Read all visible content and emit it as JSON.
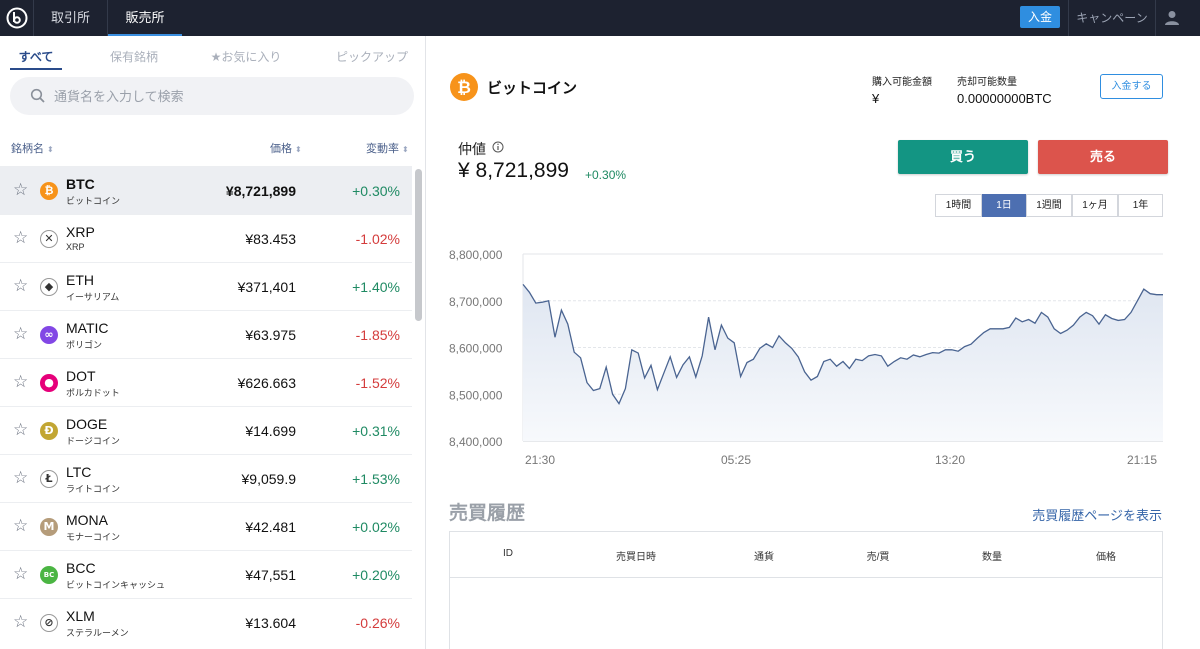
{
  "nav": {
    "tabs": [
      {
        "label": "取引所"
      },
      {
        "label": "販売所"
      }
    ],
    "deposit_label": "入金",
    "campaign_label": "キャンペーン"
  },
  "sidebar": {
    "filters": [
      {
        "label": "すべて"
      },
      {
        "label": "保有銘柄"
      },
      {
        "label": "★お気に入り"
      },
      {
        "label": "ピックアップ"
      }
    ],
    "search_placeholder": "通貨名を入力して検索",
    "columns": {
      "name": "銘柄名",
      "price": "価格",
      "change": "変動率",
      "sort_glyph": "⬍"
    },
    "coins": [
      {
        "symbol": "BTC",
        "name_jp": "ビットコイン",
        "price": "¥8,721,899",
        "change": "+0.30%",
        "dir": "up",
        "color": "#f7931a",
        "glyph": "₿"
      },
      {
        "symbol": "XRP",
        "name_jp": "XRP",
        "price": "¥83.453",
        "change": "-1.02%",
        "dir": "down",
        "color": "#ffffff",
        "glyph": "✕"
      },
      {
        "symbol": "ETH",
        "name_jp": "イーサリアム",
        "price": "¥371,401",
        "change": "+1.40%",
        "dir": "up",
        "color": "#ffffff",
        "glyph": "◆"
      },
      {
        "symbol": "MATIC",
        "name_jp": "ポリゴン",
        "price": "¥63.975",
        "change": "-1.85%",
        "dir": "down",
        "color": "#8247e5",
        "glyph": "∞"
      },
      {
        "symbol": "DOT",
        "name_jp": "ポルカドット",
        "price": "¥626.663",
        "change": "-1.52%",
        "dir": "down",
        "color": "#e6007a",
        "glyph": "●"
      },
      {
        "symbol": "DOGE",
        "name_jp": "ドージコイン",
        "price": "¥14.699",
        "change": "+0.31%",
        "dir": "up",
        "color": "#c2a633",
        "glyph": "Ð"
      },
      {
        "symbol": "LTC",
        "name_jp": "ライトコイン",
        "price": "¥9,059.9",
        "change": "+1.53%",
        "dir": "up",
        "color": "#ffffff",
        "glyph": "Ł"
      },
      {
        "symbol": "MONA",
        "name_jp": "モナーコイン",
        "price": "¥42.481",
        "change": "+0.02%",
        "dir": "up",
        "color": "#b59c7a",
        "glyph": "M"
      },
      {
        "symbol": "BCC",
        "name_jp": "ビットコインキャッシュ",
        "price": "¥47,551",
        "change": "+0.20%",
        "dir": "up",
        "color": "#4bb543",
        "glyph": "BC"
      },
      {
        "symbol": "XLM",
        "name_jp": "ステラルーメン",
        "price": "¥13.604",
        "change": "-0.26%",
        "dir": "down",
        "color": "#ffffff",
        "glyph": "⊘"
      }
    ]
  },
  "main": {
    "coin_name": "ビットコイン",
    "buyable_label": "購入可能金額",
    "buyable_value": "¥",
    "sellable_label": "売却可能数量",
    "sellable_value": "0.00000000BTC",
    "deposit_label": "入金する",
    "mid_label": "仲値",
    "mid_price": "¥ 8,721,899",
    "mid_change": "+0.30%",
    "buy_label": "買う",
    "sell_label": "売る",
    "ranges": [
      {
        "label": "1時間"
      },
      {
        "label": "1日"
      },
      {
        "label": "1週間"
      },
      {
        "label": "1ヶ月"
      },
      {
        "label": "1年"
      }
    ],
    "active_range": 1
  },
  "chart_data": {
    "type": "area",
    "y_ticks": [
      "8,800,000",
      "8,700,000",
      "8,600,000",
      "8,500,000",
      "8,400,000"
    ],
    "ylim": [
      8400000,
      8800000
    ],
    "x_tick_labels": [
      "21:30",
      "05:25",
      "13:20",
      "21:15"
    ],
    "series": [
      {
        "values": [
          8735000,
          8718000,
          8695000,
          8697000,
          8700000,
          8622000,
          8680000,
          8650000,
          8590000,
          8578000,
          8525000,
          8508000,
          8512000,
          8558000,
          8500000,
          8480000,
          8512000,
          8595000,
          8588000,
          8535000,
          8562000,
          8510000,
          8545000,
          8580000,
          8536000,
          8563000,
          8580000,
          8537000,
          8582000,
          8665000,
          8595000,
          8648000,
          8620000,
          8610000,
          8538000,
          8568000,
          8575000,
          8598000,
          8608000,
          8600000,
          8625000,
          8610000,
          8598000,
          8580000,
          8548000,
          8530000,
          8538000,
          8570000,
          8575000,
          8560000,
          8570000,
          8555000,
          8575000,
          8572000,
          8582000,
          8585000,
          8582000,
          8560000,
          8570000,
          8578000,
          8575000,
          8584000,
          8580000,
          8585000,
          8589000,
          8588000,
          8595000,
          8595000,
          8592000,
          8602000,
          8607000,
          8620000,
          8632000,
          8640000,
          8640000,
          8640000,
          8643000,
          8663000,
          8655000,
          8660000,
          8652000,
          8675000,
          8665000,
          8640000,
          8630000,
          8637000,
          8648000,
          8665000,
          8675000,
          8668000,
          8650000,
          8670000,
          8662000,
          8658000,
          8660000,
          8675000,
          8700000,
          8725000,
          8715000,
          8713000,
          8713000
        ]
      }
    ]
  },
  "history": {
    "title": "売買履歴",
    "link_label": "売買履歴ページを表示",
    "columns": [
      {
        "label": "ID"
      },
      {
        "label": "売買日時"
      },
      {
        "label": "通貨"
      },
      {
        "label": "売/買"
      },
      {
        "label": "数量"
      },
      {
        "label": "価格"
      }
    ]
  }
}
